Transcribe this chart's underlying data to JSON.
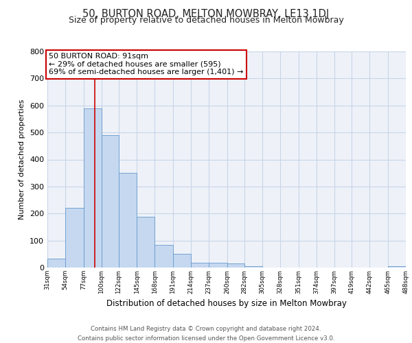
{
  "title": "50, BURTON ROAD, MELTON MOWBRAY, LE13 1DJ",
  "subtitle": "Size of property relative to detached houses in Melton Mowbray",
  "xlabel": "Distribution of detached houses by size in Melton Mowbray",
  "ylabel": "Number of detached properties",
  "bin_edges": [
    31,
    54,
    77,
    100,
    122,
    145,
    168,
    191,
    214,
    237,
    260,
    282,
    305,
    328,
    351,
    374,
    397,
    419,
    442,
    465,
    488
  ],
  "bar_heights": [
    33,
    222,
    590,
    490,
    350,
    188,
    83,
    50,
    18,
    18,
    14,
    5,
    0,
    0,
    0,
    0,
    0,
    0,
    0,
    5
  ],
  "bar_color": "#c5d8f0",
  "bar_edge_color": "#6699cc",
  "vline_x": 91,
  "vline_color": "#cc0000",
  "annotation_text": "50 BURTON ROAD: 91sqm\n← 29% of detached houses are smaller (595)\n69% of semi-detached houses are larger (1,401) →",
  "annotation_box_color": "#ffffff",
  "annotation_box_edge": "#cc0000",
  "ylim": [
    0,
    800
  ],
  "yticks": [
    0,
    100,
    200,
    300,
    400,
    500,
    600,
    700,
    800
  ],
  "tick_labels": [
    "31sqm",
    "54sqm",
    "77sqm",
    "100sqm",
    "122sqm",
    "145sqm",
    "168sqm",
    "191sqm",
    "214sqm",
    "237sqm",
    "260sqm",
    "282sqm",
    "305sqm",
    "328sqm",
    "351sqm",
    "374sqm",
    "397sqm",
    "419sqm",
    "442sqm",
    "465sqm",
    "488sqm"
  ],
  "footer_line1": "Contains HM Land Registry data © Crown copyright and database right 2024.",
  "footer_line2": "Contains public sector information licensed under the Open Government Licence v3.0.",
  "bg_color": "#ffffff",
  "axes_bg_color": "#eef2f8",
  "grid_color": "#c8d4e8",
  "title_fontsize": 10.5,
  "subtitle_fontsize": 9
}
